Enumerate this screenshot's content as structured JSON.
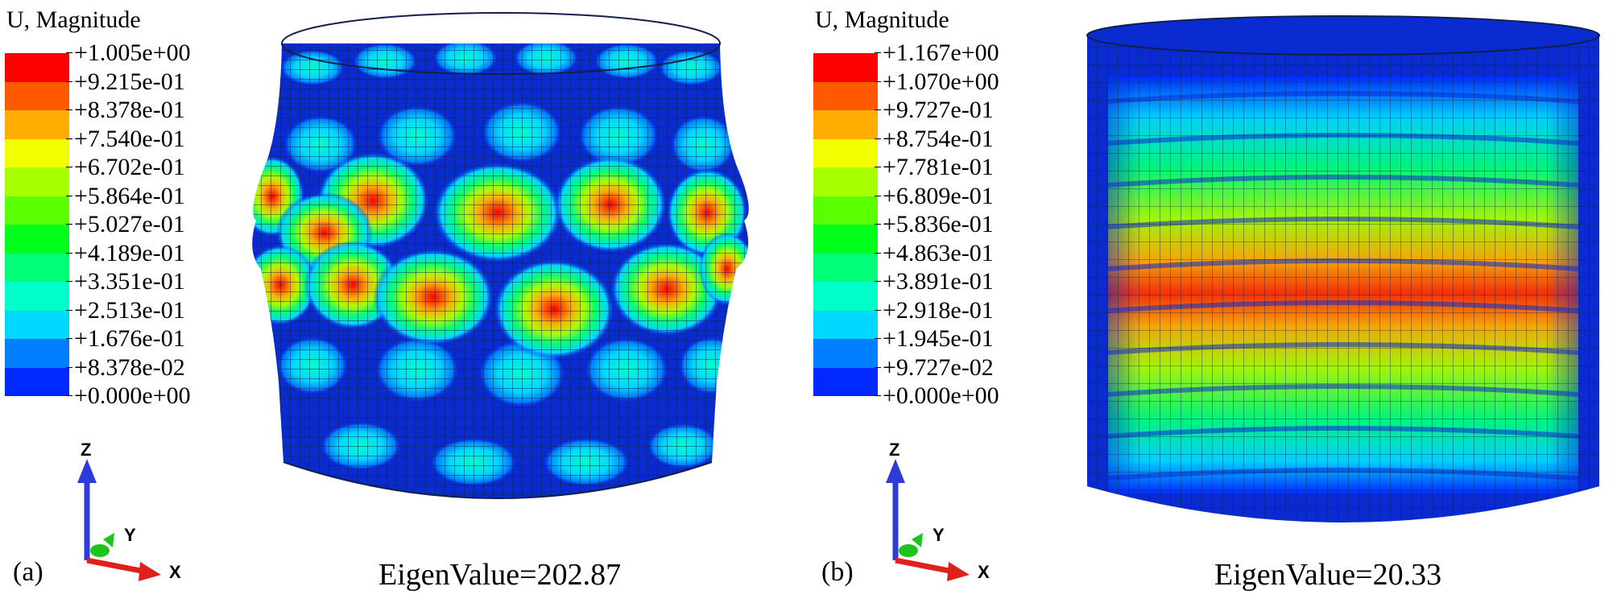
{
  "panels": [
    {
      "label": "(a)",
      "legend_title": "U, Magnitude",
      "legend_values": [
        "+1.005e+00",
        "+9.215e-01",
        "+8.378e-01",
        "+7.540e-01",
        "+6.702e-01",
        "+5.864e-01",
        "+5.027e-01",
        "+4.189e-01",
        "+3.351e-01",
        "+2.513e-01",
        "+1.676e-01",
        "+8.378e-02",
        "+0.000e+00"
      ],
      "eigen_text": "EigenValue=202.87"
    },
    {
      "label": "(b)",
      "legend_title": "U, Magnitude",
      "legend_values": [
        "+1.167e+00",
        "+1.070e+00",
        "+9.727e-01",
        "+8.754e-01",
        "+7.781e-01",
        "+6.809e-01",
        "+5.836e-01",
        "+4.863e-01",
        "+3.891e-01",
        "+2.918e-01",
        "+1.945e-01",
        "+9.727e-02",
        "+0.000e+00"
      ],
      "eigen_text": "EigenValue=20.33"
    }
  ],
  "legend_colors": [
    "#ff0000",
    "#ff5a00",
    "#ffae00",
    "#f2ff00",
    "#a8ff00",
    "#5aff00",
    "#00ff1a",
    "#00ff78",
    "#00ffc8",
    "#00d8ff",
    "#0080ff",
    "#0028ff",
    "#0000ff"
  ],
  "axes": {
    "z": "Z",
    "y": "Y",
    "x": "X"
  },
  "colors": {
    "triad_z": "#2e3bd6",
    "triad_y": "#1fc21f",
    "triad_x": "#e0201c",
    "shell_blue": "#0a2bd0",
    "mesh_line": "#10204a"
  }
}
